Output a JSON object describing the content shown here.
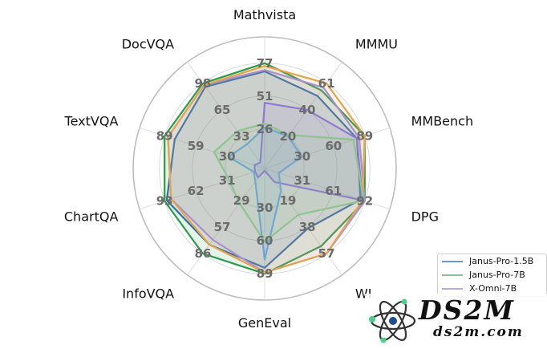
{
  "chart_data": {
    "type": "radar",
    "axes": [
      "Mathvista",
      "MMMU",
      "MMBench",
      "DPG",
      "WISE",
      "GenEval",
      "InfoVQA",
      "ChartQA",
      "TextVQA",
      "DocVQA"
    ],
    "axis_labels_visible": [
      "Mathvista",
      "MMMU",
      "MMBench",
      "DPG",
      "WI",
      "GenEval",
      "InfoVQA",
      "ChartQA",
      "TextVQA",
      "DocVQA"
    ],
    "axis_max": [
      77,
      61,
      89,
      92,
      57,
      89,
      86,
      93,
      89,
      98
    ],
    "tick_labels": [
      [
        "26",
        "51",
        "77"
      ],
      [
        "20",
        "40",
        "61"
      ],
      [
        "30",
        "60",
        "89"
      ],
      [
        "31",
        "61",
        "92"
      ],
      [
        "19",
        "38",
        "57"
      ],
      [
        "30",
        "60",
        "89"
      ],
      [
        "29",
        "57",
        "86"
      ],
      [
        "31",
        "62",
        "93"
      ],
      [
        "30",
        "59",
        "89"
      ],
      [
        "33",
        "65",
        "98"
      ]
    ],
    "series": [
      {
        "name": "Janus-Pro-1.5B",
        "color": "#2f6db5",
        "values": [
          71,
          52,
          82,
          88,
          40,
          84,
          77,
          91,
          80,
          94
        ]
      },
      {
        "name": "Janus-Pro-7B",
        "color": "#2e9a4e",
        "values": [
          77,
          56,
          89,
          92,
          52,
          89,
          86,
          93,
          89,
          98
        ]
      },
      {
        "name": "X-Omni-7B",
        "color": "#a48de0",
        "values": [
          72,
          58,
          84,
          92,
          57,
          88,
          72,
          87,
          86,
          96
        ]
      },
      {
        "name": "",
        "color": "#e8a24a",
        "values": [
          75,
          61,
          89,
          90,
          57,
          88,
          77,
          87,
          86,
          96
        ]
      },
      {
        "name": "",
        "color": "#8f7ad2",
        "values": [
          48,
          42,
          82,
          90,
          9,
          2,
          9,
          9,
          9,
          7
        ]
      },
      {
        "name": "",
        "color": "#6ea5d8",
        "values": [
          30,
          23,
          33,
          13,
          15,
          77,
          13,
          10,
          32,
          28
        ]
      },
      {
        "name": "",
        "color": "#8fc38f",
        "values": [
          33,
          24,
          79,
          91,
          31,
          62,
          35,
          33,
          45,
          43
        ]
      }
    ],
    "legend": [
      "Janus-Pro-1.5B",
      "Janus-Pro-7B",
      "X-Omni-7B"
    ],
    "legend_position": "bottom-right",
    "grid": true,
    "watermark": [
      "DS2M",
      "ds2m.com"
    ]
  }
}
